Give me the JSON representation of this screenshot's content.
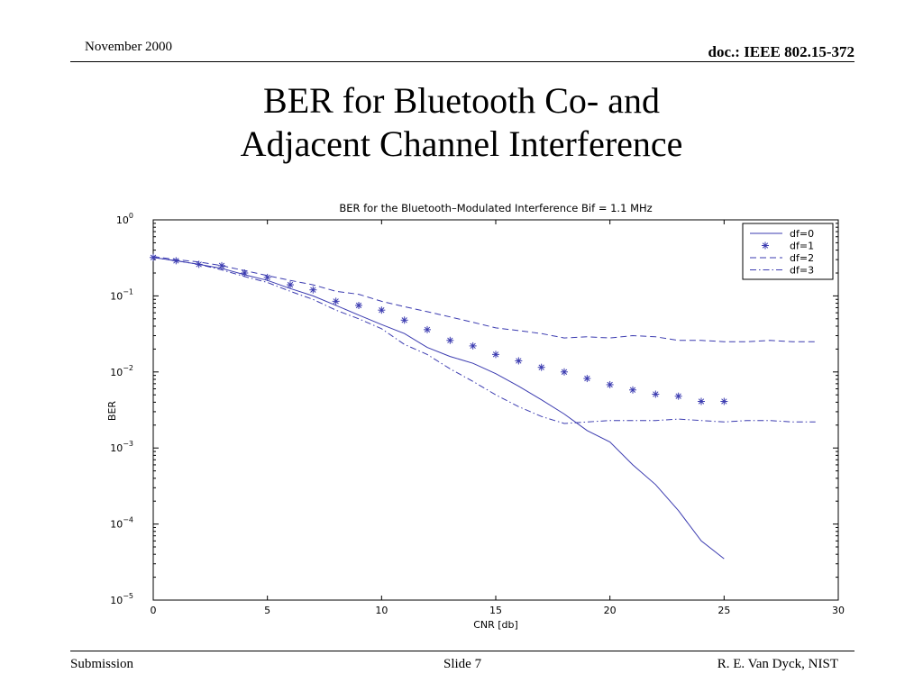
{
  "header": {
    "date": "November 2000",
    "doc": "doc.: IEEE 802.15-372"
  },
  "slide": {
    "title_line1": "BER for Bluetooth Co- and",
    "title_line2": "Adjacent Channel Interference"
  },
  "footer": {
    "left": "Submission",
    "center": "Slide 7",
    "right": "R. E. Van Dyck, NIST"
  },
  "chart_data": {
    "type": "line",
    "title": "BER for the Bluetooth–Modulated Interference Bif = 1.1 MHz",
    "xlabel": "CNR [db]",
    "ylabel": "BER",
    "xlim": [
      0,
      30
    ],
    "ylim": [
      1e-05,
      1
    ],
    "yscale": "log",
    "x_ticks": [
      0,
      5,
      10,
      15,
      20,
      25,
      30
    ],
    "y_ticks": [
      {
        "value": 1,
        "base": "10",
        "exp": "0"
      },
      {
        "value": 0.1,
        "base": "10",
        "exp": "−1"
      },
      {
        "value": 0.01,
        "base": "10",
        "exp": "−2"
      },
      {
        "value": 0.001,
        "base": "10",
        "exp": "−3"
      },
      {
        "value": 0.0001,
        "base": "10",
        "exp": "−4"
      },
      {
        "value": 1e-05,
        "base": "10",
        "exp": "−5"
      }
    ],
    "grid": false,
    "legend_position": "top-right",
    "line_color": "#3b3bb0",
    "series": [
      {
        "name": "df=0",
        "style": "solid",
        "x": [
          0,
          1,
          2,
          3,
          4,
          5,
          6,
          7,
          8,
          9,
          10,
          11,
          12,
          13,
          14,
          15,
          16,
          17,
          18,
          19,
          20,
          21,
          22,
          23,
          24,
          25
        ],
        "y": [
          0.32,
          0.29,
          0.26,
          0.23,
          0.19,
          0.16,
          0.125,
          0.1,
          0.075,
          0.056,
          0.042,
          0.032,
          0.021,
          0.016,
          0.013,
          0.0095,
          0.0065,
          0.0043,
          0.0028,
          0.0017,
          0.0012,
          0.0006,
          0.00033,
          0.00015,
          6e-05,
          3.5e-05
        ]
      },
      {
        "name": "df=1",
        "style": "star",
        "x": [
          0,
          1,
          2,
          3,
          4,
          5,
          6,
          7,
          8,
          9,
          10,
          11,
          12,
          13,
          14,
          15,
          16,
          17,
          18,
          19,
          20,
          21,
          22,
          23,
          24,
          25
        ],
        "y": [
          0.32,
          0.29,
          0.26,
          0.25,
          0.2,
          0.175,
          0.14,
          0.12,
          0.085,
          0.075,
          0.065,
          0.048,
          0.036,
          0.026,
          0.022,
          0.017,
          0.014,
          0.0115,
          0.01,
          0.0082,
          0.0068,
          0.0058,
          0.0051,
          0.0048,
          0.0041,
          0.0041
        ]
      },
      {
        "name": "df=2",
        "style": "dashed",
        "x": [
          0,
          1,
          2,
          3,
          4,
          5,
          6,
          7,
          8,
          9,
          10,
          11,
          12,
          13,
          14,
          15,
          16,
          17,
          18,
          19,
          20,
          21,
          22,
          23,
          24,
          25,
          26,
          27,
          28,
          29
        ],
        "y": [
          0.33,
          0.3,
          0.28,
          0.25,
          0.215,
          0.185,
          0.16,
          0.14,
          0.115,
          0.105,
          0.085,
          0.072,
          0.062,
          0.053,
          0.045,
          0.038,
          0.035,
          0.032,
          0.028,
          0.029,
          0.028,
          0.03,
          0.029,
          0.026,
          0.026,
          0.025,
          0.025,
          0.026,
          0.025,
          0.025
        ]
      },
      {
        "name": "df=3",
        "style": "dashdot",
        "x": [
          0,
          1,
          2,
          3,
          4,
          5,
          6,
          7,
          8,
          9,
          10,
          11,
          12,
          13,
          14,
          15,
          16,
          17,
          18,
          19,
          20,
          21,
          22,
          23,
          24,
          25,
          26,
          27,
          28,
          29
        ],
        "y": [
          0.32,
          0.29,
          0.26,
          0.22,
          0.18,
          0.15,
          0.115,
          0.09,
          0.065,
          0.05,
          0.037,
          0.023,
          0.017,
          0.011,
          0.0075,
          0.005,
          0.0035,
          0.0026,
          0.0021,
          0.0022,
          0.0023,
          0.0023,
          0.0023,
          0.0024,
          0.0023,
          0.0022,
          0.0023,
          0.0023,
          0.0022,
          0.0022
        ]
      }
    ]
  }
}
